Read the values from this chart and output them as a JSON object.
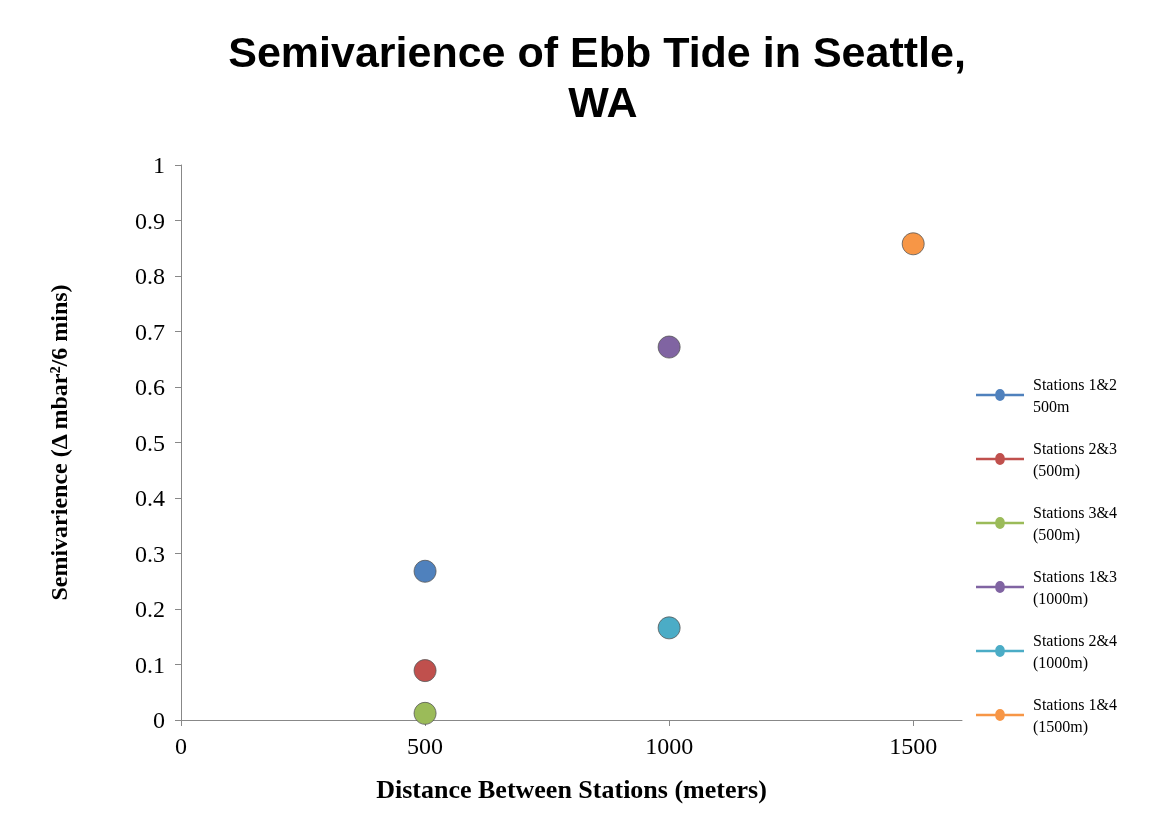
{
  "chart_data": {
    "type": "scatter",
    "title": "Semivarience of Ebb Tide in Seattle, WA",
    "xlabel": "Distance Between Stations (meters)",
    "ylabel": "Semivarience (Δ mbar²/6 mins)",
    "xlim": [
      0,
      1600
    ],
    "xticks": [
      0,
      500,
      1000,
      1500
    ],
    "ylim": [
      0,
      1
    ],
    "yticks": [
      0,
      0.1,
      0.2,
      0.3,
      0.4,
      0.5,
      0.6,
      0.7,
      0.8,
      0.9,
      1
    ],
    "grid": false,
    "legend": "right",
    "marker": "circle",
    "series": [
      {
        "name": "Stations 1&2 500m",
        "color": "#4f81bd",
        "x": [
          500
        ],
        "values": [
          0.268
        ]
      },
      {
        "name": "Stations 2&3 (500m)",
        "color": "#c0504d",
        "x": [
          500
        ],
        "values": [
          0.089
        ]
      },
      {
        "name": "Stations 3&4 (500m)",
        "color": "#9bbb59",
        "x": [
          500
        ],
        "values": [
          0.012
        ]
      },
      {
        "name": "Stations 1&3 (1000m)",
        "color": "#8064a2",
        "x": [
          1000
        ],
        "values": [
          0.672
        ]
      },
      {
        "name": "Stations 2&4 (1000m)",
        "color": "#4bacc6",
        "x": [
          1000
        ],
        "values": [
          0.166
        ]
      },
      {
        "name": "Stations 1&4 (1500m)",
        "color": "#f79646",
        "x": [
          1500
        ],
        "values": [
          0.858
        ]
      }
    ]
  }
}
